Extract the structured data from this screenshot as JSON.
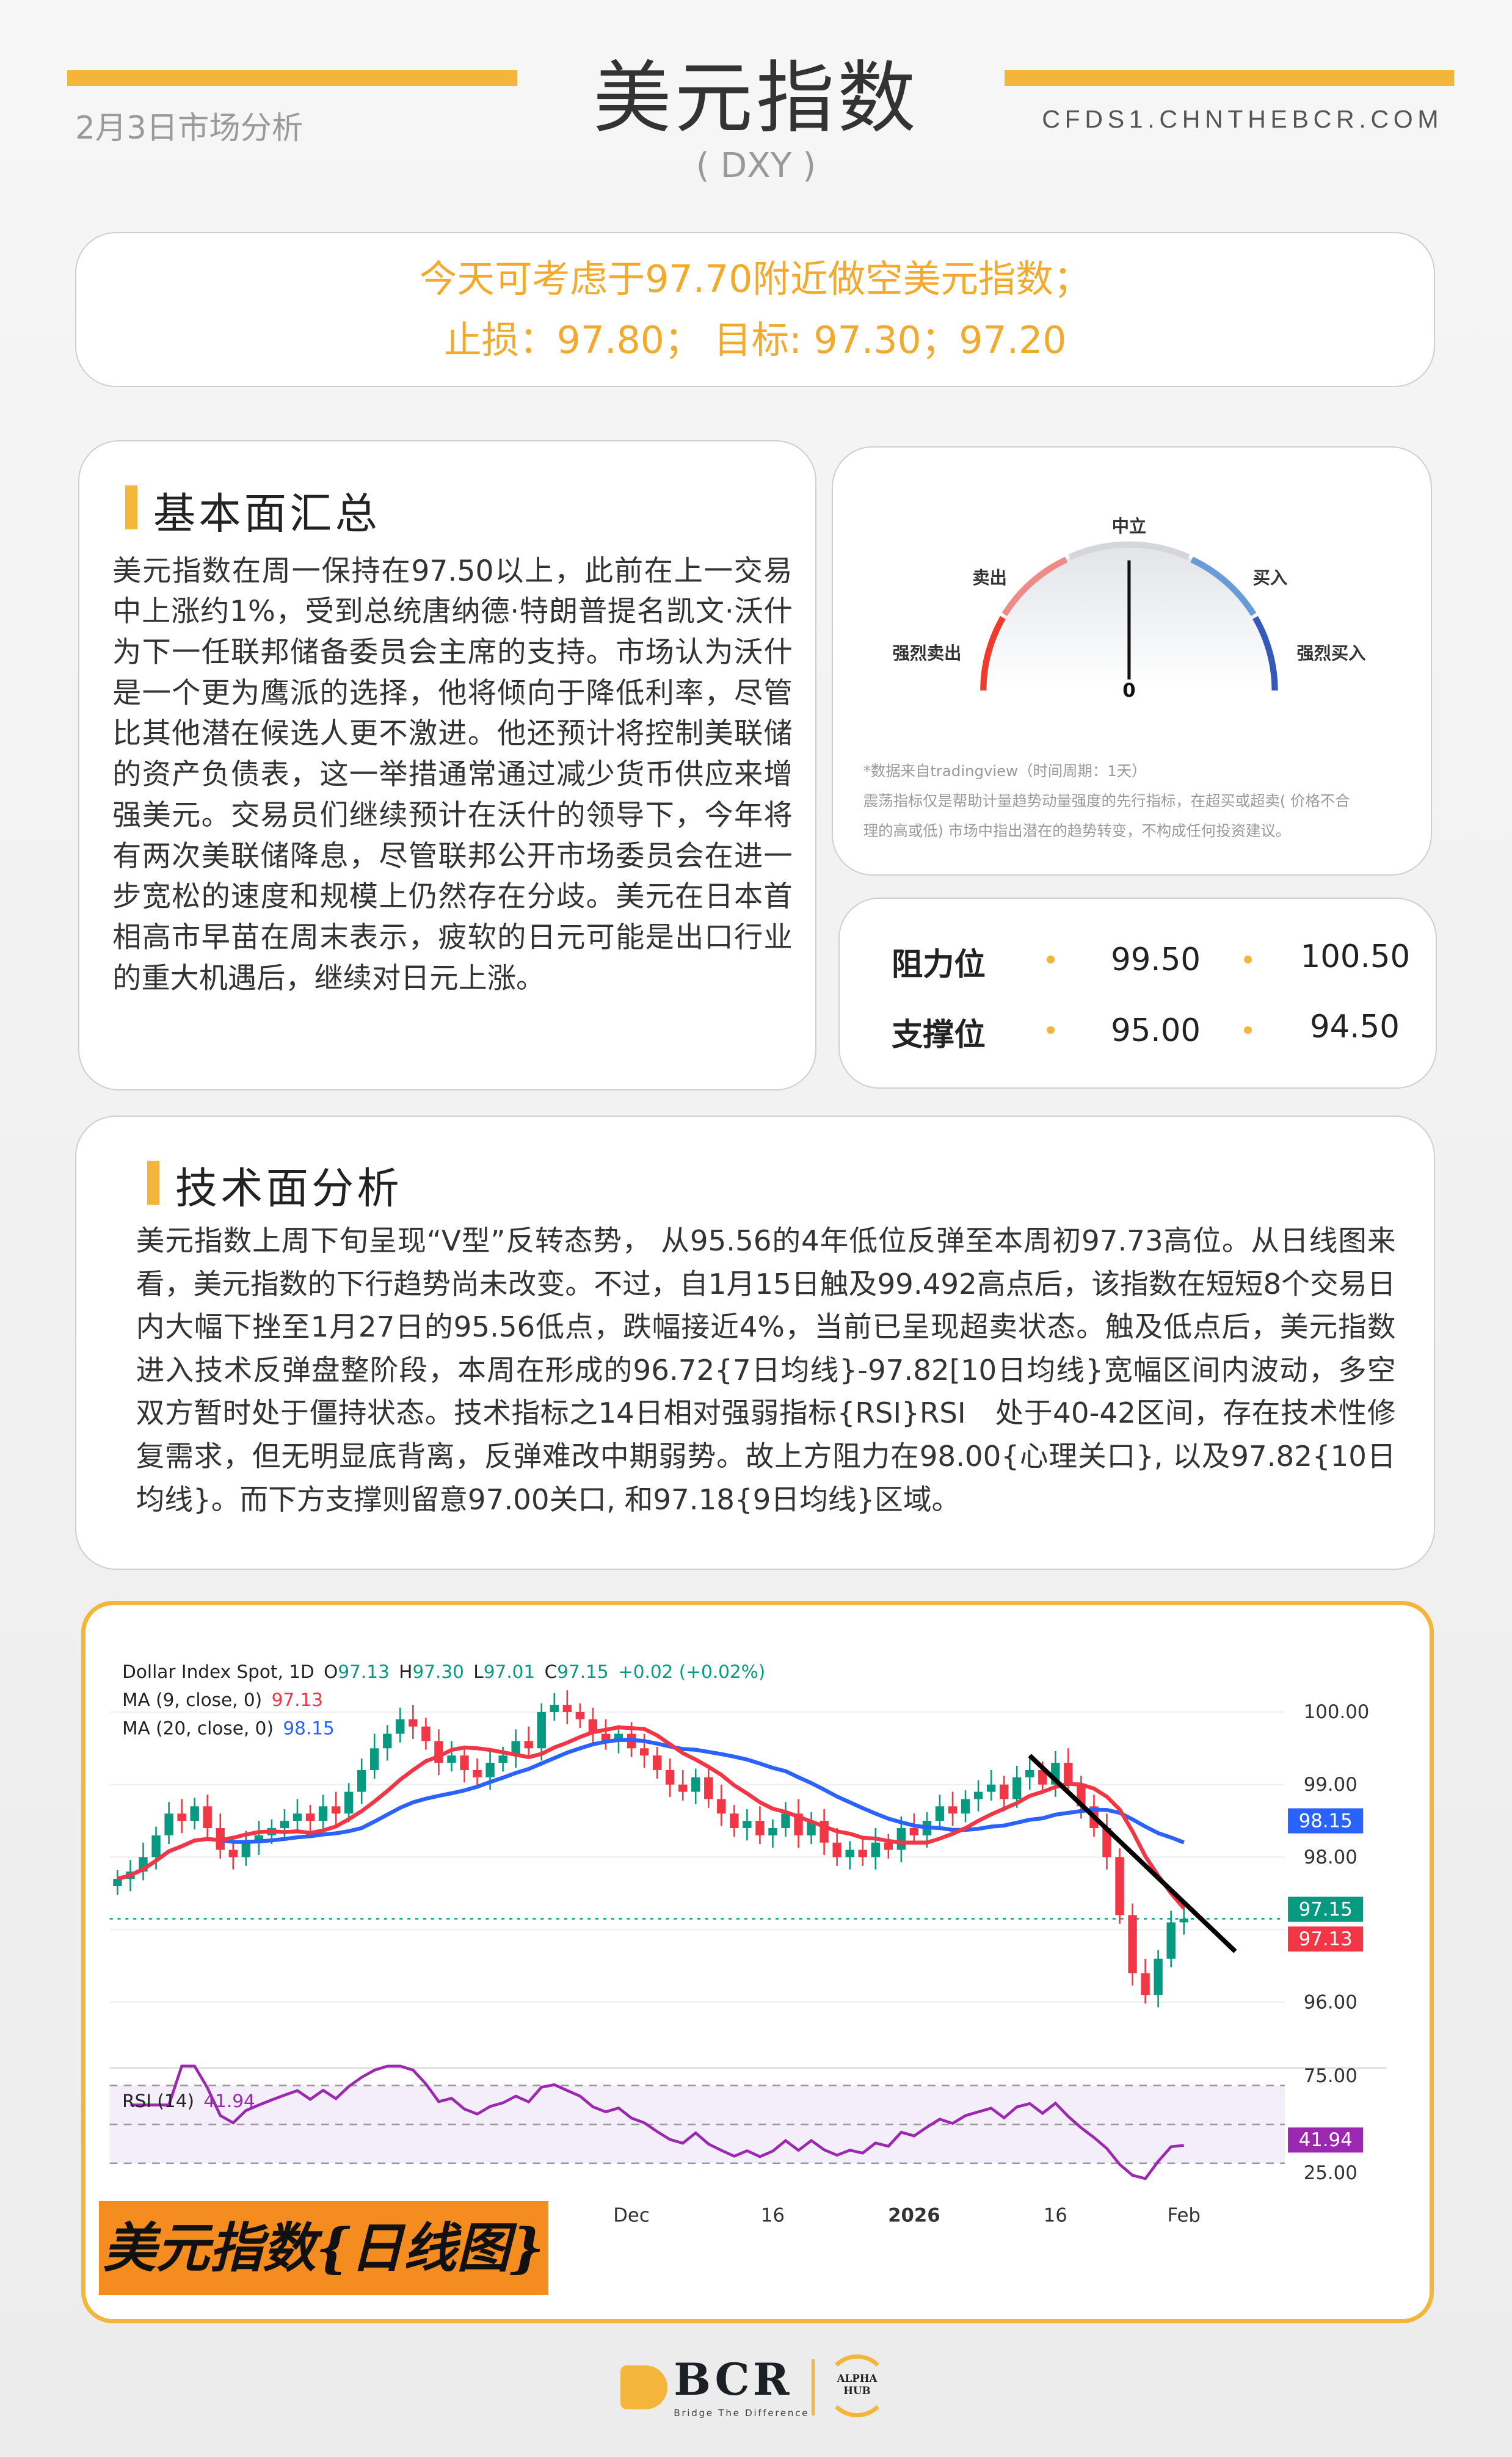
{
  "header": {
    "date_label": "2月3日市场分析",
    "title": "美元指数",
    "subtitle": "( DXY )",
    "website": "CFDS1.CHNTHEBCR.COM",
    "accent_color": "#f3b63a"
  },
  "callout": {
    "line1": "今天可考虑于97.70附近做空美元指数；",
    "line2": "止损：97.80； 目标: 97.30；97.20"
  },
  "fundamentals": {
    "title": "基本面汇总",
    "body": "美元指数在周一保持在97.50以上，此前在上一交易中上涨约1%，受到总统唐纳德·特朗普提名凯文·沃什为下一任联邦储备委员会主席的支持。市场认为沃什是一个更为鹰派的选择，他将倾向于降低利率，尽管比其他潜在候选人更不激进。他还预计将控制美联储的资产负债表，这一举措通常通过减少货币供应来增强美元。交易员们继续预计在沃什的领导下，今年将有两次美联储降息，尽管联邦公开市场委员会在进一步宽松的速度和规模上仍然存在分歧。美元在日本首相高市早苗在周末表示，疲软的日元可能是出口行业的重大机遇后，继续对日元上涨。"
  },
  "gauge": {
    "labels": {
      "strong_sell": "强烈卖出",
      "sell": "卖出",
      "neutral": "中立",
      "buy": "买入",
      "strong_buy": "强烈买入"
    },
    "value": "0",
    "reading": "neutral",
    "note1": "*数据来自tradingview（时间周期：1天）",
    "note2": "震荡指标仅是帮助计量趋势动量强度的先行指标，在超买或超卖( 价格不合",
    "note3": "理的高或低) 市场中指出潜在的趋势转变，不构成任何投资建议。"
  },
  "levels": {
    "resistance": {
      "label": "阻力位",
      "values": [
        "99.50",
        "100.50"
      ]
    },
    "support": {
      "label": "支撑位",
      "values": [
        "95.00",
        "94.50"
      ]
    }
  },
  "technical": {
    "title": "技术面分析",
    "body": "美元指数上周下旬呈现“V型”反转态势， 从95.56的4年低位反弹至本周初97.73高位。从日线图来看，美元指数的下行趋势尚未改变。不过，自1月15日触及99.492高点后，该指数在短短8个交易日内大幅下挫至1月27日的95.56低点，跌幅接近4%，当前已呈现超卖状态。触及低点后，美元指数进入技术反弹盘整阶段，本周在形成的96.72{7日均线}-97.82[10日均线}宽幅区间内波动，多空双方暂时处于僵持状态。技术指标之14日相对强弱指标{RSI}RSI　处于40-42区间，存在技术性修复需求，但无明显底背离，反弹难改中期弱势。故上方阻力在98.00{心理关口}, 以及97.82{10日均线}。而下方支撑则留意97.00关口, 和97.18{9日均线}区域。"
  },
  "chart_data": {
    "type": "candlestick",
    "symbol_label": "Dollar Index Spot, 1D",
    "ohlc": {
      "o": "97.13",
      "h": "97.30",
      "l": "97.01",
      "c": "97.15",
      "change": "+0.02 (+0.02%)"
    },
    "ma9": {
      "label": "MA (9, close, 0)",
      "value": "97.13",
      "color": "#f23645"
    },
    "ma20": {
      "label": "MA (20, close, 0)",
      "value": "98.15",
      "color": "#2962ff"
    },
    "price_ticks": [
      "100.00",
      "99.00",
      "98.00",
      "96.00"
    ],
    "price_badges": {
      "ma20": "98.15",
      "last": "97.15",
      "ma9": "97.13"
    },
    "ylim": [
      95.6,
      100.6
    ],
    "closes": [
      97.7,
      97.8,
      98.0,
      98.3,
      98.6,
      98.5,
      98.7,
      98.4,
      98.1,
      98.0,
      98.2,
      98.3,
      98.4,
      98.5,
      98.6,
      98.5,
      98.7,
      98.6,
      98.9,
      99.2,
      99.5,
      99.7,
      99.9,
      99.8,
      99.6,
      99.3,
      99.4,
      99.2,
      99.1,
      99.3,
      99.4,
      99.6,
      99.5,
      100.0,
      100.1,
      100.0,
      99.9,
      99.7,
      99.6,
      99.7,
      99.5,
      99.4,
      99.2,
      99.0,
      98.9,
      99.1,
      98.8,
      98.6,
      98.4,
      98.5,
      98.3,
      98.4,
      98.6,
      98.3,
      98.5,
      98.2,
      98.0,
      98.1,
      98.0,
      98.2,
      98.1,
      98.4,
      98.3,
      98.5,
      98.7,
      98.6,
      98.8,
      98.9,
      99.0,
      98.8,
      99.1,
      99.2,
      99.0,
      99.3,
      99.0,
      98.7,
      98.4,
      98.0,
      97.2,
      96.4,
      96.1,
      96.6,
      97.1,
      97.15
    ],
    "trendline": {
      "from": [
        71,
        99.4
      ],
      "to": [
        87,
        96.7
      ]
    },
    "rsi": {
      "label": "RSI (14)",
      "value": "41.94",
      "ticks": [
        "75.00",
        "25.00"
      ],
      "color": "#9c27b0"
    },
    "x_ticks": [
      {
        "label": "Dec",
        "index": 40
      },
      {
        "label": "16",
        "index": 51
      },
      {
        "label": "2026",
        "index": 62
      },
      {
        "label": "16",
        "index": 73
      },
      {
        "label": "Feb",
        "index": 83
      }
    ],
    "up_color": "#089981",
    "down_color": "#f23645",
    "caption": "美元指数{日线图}"
  },
  "footer": {
    "logo": "BCR",
    "tagline": "Bridge The Difference",
    "partner": "ALPHA HUB"
  }
}
